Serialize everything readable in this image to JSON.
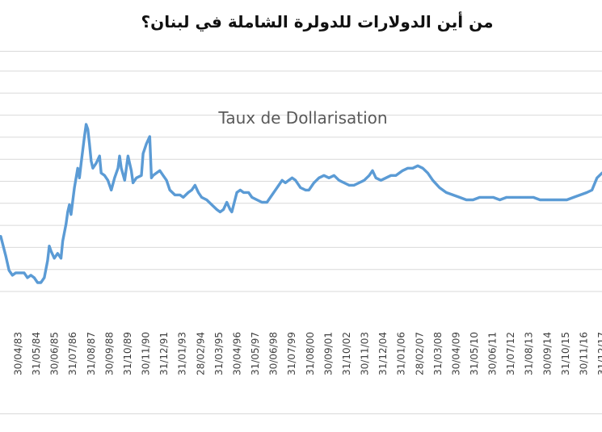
{
  "headline": "من أين الدولارات للدولرة الشاملة في لبنان؟",
  "colors": {
    "series": "#5b9bd5",
    "gridline": "#d9d9d9",
    "tick_text": "#404040",
    "title_text": "#595959"
  },
  "chart_data": {
    "type": "line",
    "title": "Taux de Dollarisation",
    "grid": "horizontal",
    "legend": "none",
    "x_tick_labels": [
      "30/04/83",
      "31/05/84",
      "30/06/85",
      "31/07/86",
      "31/08/87",
      "30/09/88",
      "31/10/89",
      "30/11/90",
      "31/12/91",
      "31/01/93",
      "28/02/94",
      "31/03/95",
      "30/04/96",
      "31/05/97",
      "30/06/98",
      "31/07/99",
      "31/08/00",
      "30/09/01",
      "31/10/02",
      "30/11/03",
      "31/12/04",
      "31/01/06",
      "28/02/07",
      "31/03/08",
      "30/04/09",
      "31/05/10",
      "30/06/11",
      "31/07/12",
      "31/08/13",
      "30/09/14",
      "31/10/15",
      "30/11/16",
      "31/12/17"
    ],
    "series": [
      {
        "points": [
          [
            1982.6,
            50
          ],
          [
            1982.9,
            42
          ],
          [
            1983.1,
            36
          ],
          [
            1983.3,
            34
          ],
          [
            1983.5,
            35
          ],
          [
            1983.8,
            35
          ],
          [
            1984.0,
            35
          ],
          [
            1984.2,
            33
          ],
          [
            1984.4,
            34
          ],
          [
            1984.6,
            33
          ],
          [
            1984.8,
            31
          ],
          [
            1985.0,
            31
          ],
          [
            1985.2,
            33
          ],
          [
            1985.4,
            40
          ],
          [
            1985.5,
            46
          ],
          [
            1985.6,
            44
          ],
          [
            1985.8,
            41
          ],
          [
            1986.0,
            43
          ],
          [
            1986.2,
            41
          ],
          [
            1986.3,
            48
          ],
          [
            1986.5,
            55
          ],
          [
            1986.6,
            60
          ],
          [
            1986.7,
            63
          ],
          [
            1986.8,
            59
          ],
          [
            1987.0,
            70
          ],
          [
            1987.2,
            78
          ],
          [
            1987.3,
            74
          ],
          [
            1987.4,
            80
          ],
          [
            1987.6,
            91
          ],
          [
            1987.7,
            96
          ],
          [
            1987.8,
            94
          ],
          [
            1987.9,
            88
          ],
          [
            1988.0,
            81
          ],
          [
            1988.1,
            78
          ],
          [
            1988.3,
            80
          ],
          [
            1988.5,
            83
          ],
          [
            1988.6,
            76
          ],
          [
            1988.8,
            75
          ],
          [
            1989.0,
            73
          ],
          [
            1989.2,
            69
          ],
          [
            1989.4,
            74
          ],
          [
            1989.6,
            78
          ],
          [
            1989.7,
            83
          ],
          [
            1989.8,
            78
          ],
          [
            1990.0,
            73
          ],
          [
            1990.2,
            83
          ],
          [
            1990.4,
            77
          ],
          [
            1990.5,
            72
          ],
          [
            1990.7,
            74
          ],
          [
            1991.0,
            75
          ],
          [
            1991.1,
            84
          ],
          [
            1991.3,
            88
          ],
          [
            1991.5,
            91
          ],
          [
            1991.6,
            74
          ],
          [
            1991.7,
            75
          ],
          [
            1991.9,
            76
          ],
          [
            1992.1,
            77
          ],
          [
            1992.3,
            75
          ],
          [
            1992.5,
            73
          ],
          [
            1992.7,
            69
          ],
          [
            1993.0,
            67
          ],
          [
            1993.3,
            67
          ],
          [
            1993.5,
            66
          ],
          [
            1993.8,
            68
          ],
          [
            1994.0,
            69
          ],
          [
            1994.2,
            71
          ],
          [
            1994.4,
            68
          ],
          [
            1994.6,
            66
          ],
          [
            1994.9,
            65
          ],
          [
            1995.2,
            63
          ],
          [
            1995.5,
            61
          ],
          [
            1995.7,
            60
          ],
          [
            1995.9,
            61
          ],
          [
            1996.1,
            64
          ],
          [
            1996.3,
            61
          ],
          [
            1996.4,
            60
          ],
          [
            1996.7,
            68
          ],
          [
            1996.9,
            69
          ],
          [
            1997.1,
            68
          ],
          [
            1997.4,
            68
          ],
          [
            1997.6,
            66
          ],
          [
            1997.9,
            65
          ],
          [
            1998.2,
            64
          ],
          [
            1998.5,
            64
          ],
          [
            1998.8,
            67
          ],
          [
            1999.0,
            69
          ],
          [
            1999.2,
            71
          ],
          [
            1999.4,
            73
          ],
          [
            1999.6,
            72
          ],
          [
            1999.8,
            73
          ],
          [
            2000.0,
            74
          ],
          [
            2000.2,
            73
          ],
          [
            2000.5,
            70
          ],
          [
            2000.8,
            69
          ],
          [
            2001.0,
            69
          ],
          [
            2001.3,
            72
          ],
          [
            2001.6,
            74
          ],
          [
            2001.9,
            75
          ],
          [
            2002.2,
            74
          ],
          [
            2002.5,
            75
          ],
          [
            2002.8,
            73
          ],
          [
            2003.1,
            72
          ],
          [
            2003.4,
            71
          ],
          [
            2003.7,
            71
          ],
          [
            2004.0,
            72
          ],
          [
            2004.3,
            73
          ],
          [
            2004.6,
            75
          ],
          [
            2004.8,
            77
          ],
          [
            2005.0,
            74
          ],
          [
            2005.3,
            73
          ],
          [
            2005.6,
            74
          ],
          [
            2005.9,
            75
          ],
          [
            2006.2,
            75
          ],
          [
            2006.6,
            77
          ],
          [
            2006.9,
            78
          ],
          [
            2007.2,
            78
          ],
          [
            2007.5,
            79
          ],
          [
            2007.8,
            78
          ],
          [
            2008.1,
            76
          ],
          [
            2008.4,
            73
          ],
          [
            2008.8,
            70
          ],
          [
            2009.2,
            68
          ],
          [
            2009.6,
            67
          ],
          [
            2010.0,
            66
          ],
          [
            2010.4,
            65
          ],
          [
            2010.8,
            65
          ],
          [
            2011.2,
            66
          ],
          [
            2011.6,
            66
          ],
          [
            2012.0,
            66
          ],
          [
            2012.4,
            65
          ],
          [
            2012.8,
            66
          ],
          [
            2013.2,
            66
          ],
          [
            2013.6,
            66
          ],
          [
            2014.0,
            66
          ],
          [
            2014.4,
            66
          ],
          [
            2014.8,
            65
          ],
          [
            2015.2,
            65
          ],
          [
            2015.6,
            65
          ],
          [
            2016.0,
            65
          ],
          [
            2016.4,
            65
          ],
          [
            2016.8,
            66
          ],
          [
            2017.2,
            67
          ],
          [
            2017.6,
            68
          ],
          [
            2017.9,
            69
          ],
          [
            2018.2,
            74
          ],
          [
            2018.5,
            76
          ]
        ]
      }
    ]
  }
}
